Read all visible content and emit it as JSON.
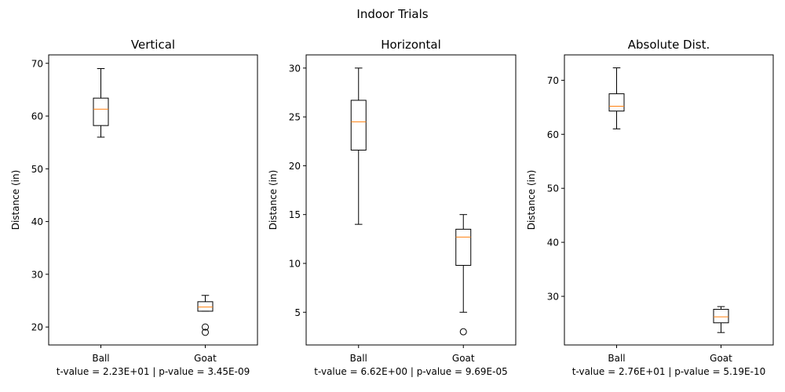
{
  "figure": {
    "suptitle": "Indoor Trials"
  },
  "chart_data": [
    {
      "type": "box",
      "title": "Vertical",
      "ylabel": "Distance (in)",
      "footer": "t-value = 2.23E+01 | p-value = 3.45E-09",
      "categories": [
        "Ball",
        "Goat"
      ],
      "ylim": [
        16.6,
        71.6
      ],
      "yticks": [
        20,
        30,
        40,
        50,
        60,
        70
      ],
      "boxes": [
        {
          "whislo": 56,
          "q1": 58.2,
          "med": 61.3,
          "q3": 63.4,
          "whishi": 69,
          "fliers": []
        },
        {
          "whislo": 23,
          "q1": 23,
          "med": 23.8,
          "q3": 24.8,
          "whishi": 26,
          "fliers": [
            20,
            19
          ]
        }
      ]
    },
    {
      "type": "box",
      "title": "Horizontal",
      "ylabel": "Distance (in)",
      "footer": "t-value = 6.62E+00 | p-value = 9.69E-05",
      "categories": [
        "Ball",
        "Goat"
      ],
      "ylim": [
        1.65,
        31.35
      ],
      "yticks": [
        5,
        10,
        15,
        20,
        25,
        30
      ],
      "boxes": [
        {
          "whislo": 14,
          "q1": 21.6,
          "med": 24.5,
          "q3": 26.7,
          "whishi": 30,
          "fliers": []
        },
        {
          "whislo": 5,
          "q1": 9.8,
          "med": 12.7,
          "q3": 13.5,
          "whishi": 15,
          "fliers": [
            3
          ]
        }
      ]
    },
    {
      "type": "box",
      "title": "Absolute Dist.",
      "ylabel": "Distance (in)",
      "footer": "t-value = 2.76E+01 | p-value = 5.19E-10",
      "categories": [
        "Ball",
        "Goat"
      ],
      "ylim": [
        21.0,
        74.7
      ],
      "yticks": [
        30,
        40,
        50,
        60,
        70
      ],
      "boxes": [
        {
          "whislo": 61,
          "q1": 64.3,
          "med": 65.2,
          "q3": 67.5,
          "whishi": 72.3,
          "fliers": []
        },
        {
          "whislo": 23.3,
          "q1": 25.1,
          "med": 26.2,
          "q3": 27.6,
          "whishi": 28.1,
          "fliers": []
        }
      ]
    }
  ],
  "colors": {
    "median": "#ff7f0e",
    "stroke": "#000000"
  }
}
